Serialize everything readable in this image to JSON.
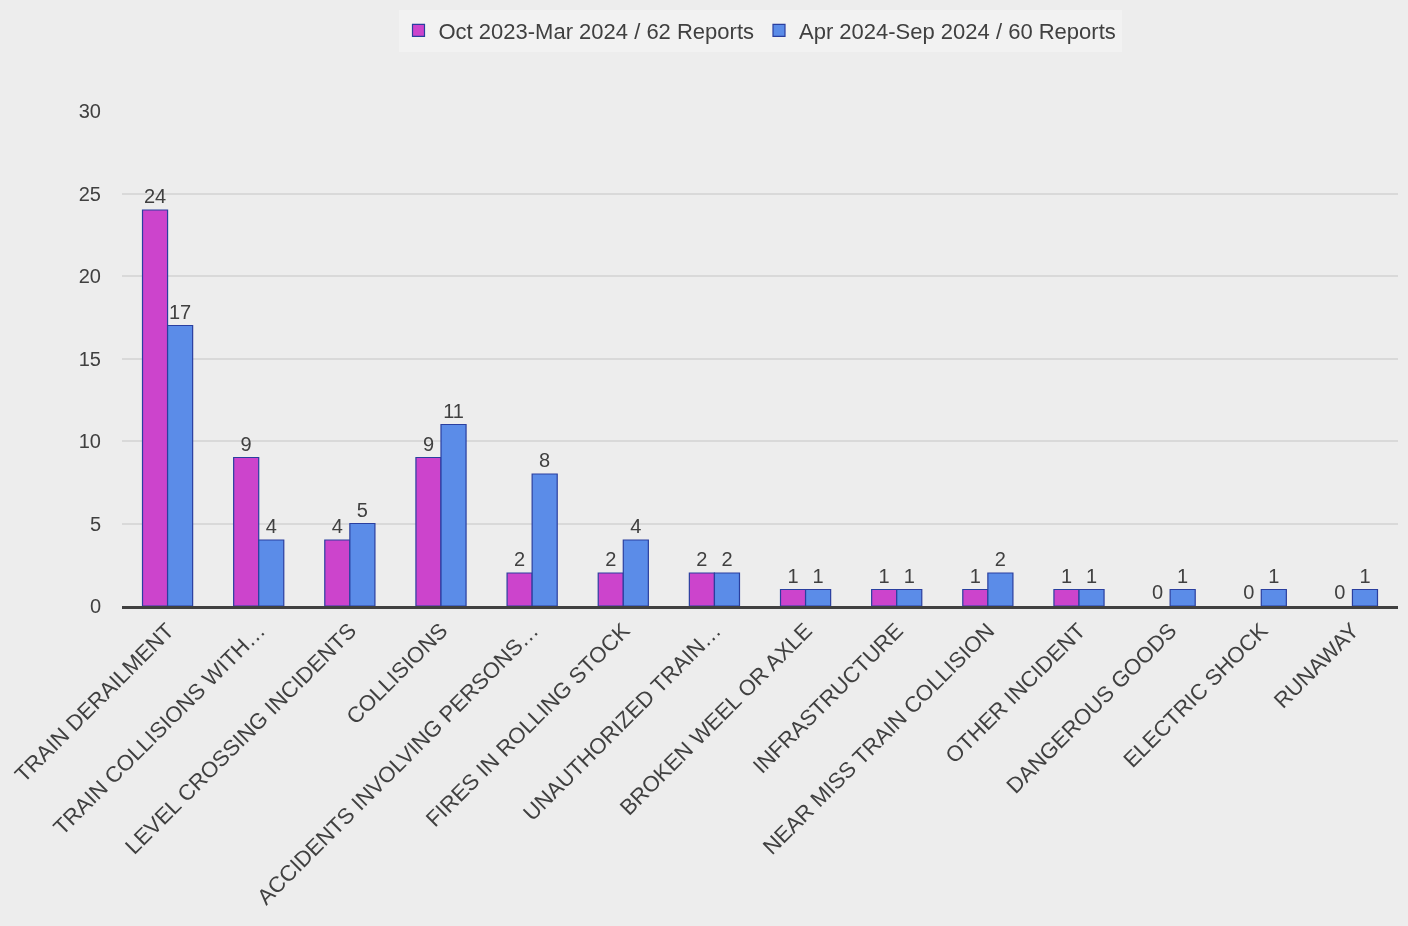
{
  "chart_data": {
    "type": "bar",
    "categories": [
      "TRAIN DERAILMENT",
      "TRAIN COLLISIONS WITH…",
      "LEVEL CROSSING INCIDENTS",
      "COLLISIONS",
      "ACCIDENTS INVOLVING PERSONS…",
      "FIRES IN ROLLING STOCK",
      "UNAUTHORIZED TRAIN…",
      "BROKEN WEEL OR AXLE",
      "INFRASTRUCTURE",
      "NEAR MISS TRAIN COLLISION",
      "OTHER INCIDENT",
      "DANGEROUS GOODS",
      "ELECTRIC SHOCK",
      "RUNAWAY"
    ],
    "series": [
      {
        "name": "Oct 2023-Mar 2024 / 62 Reports",
        "color": "#cc44cc",
        "values": [
          24,
          9,
          4,
          9,
          2,
          2,
          2,
          1,
          1,
          1,
          1,
          0,
          0,
          0
        ]
      },
      {
        "name": "Apr 2024-Sep 2024 / 60 Reports",
        "color": "#5b8ce8",
        "values": [
          17,
          4,
          5,
          11,
          8,
          4,
          2,
          1,
          1,
          2,
          1,
          1,
          1,
          1
        ]
      }
    ],
    "ylim": [
      0,
      30
    ],
    "yticks": [
      0,
      5,
      10,
      15,
      20,
      25,
      30
    ],
    "grid": "y",
    "legend": "top",
    "data_labels": true
  }
}
